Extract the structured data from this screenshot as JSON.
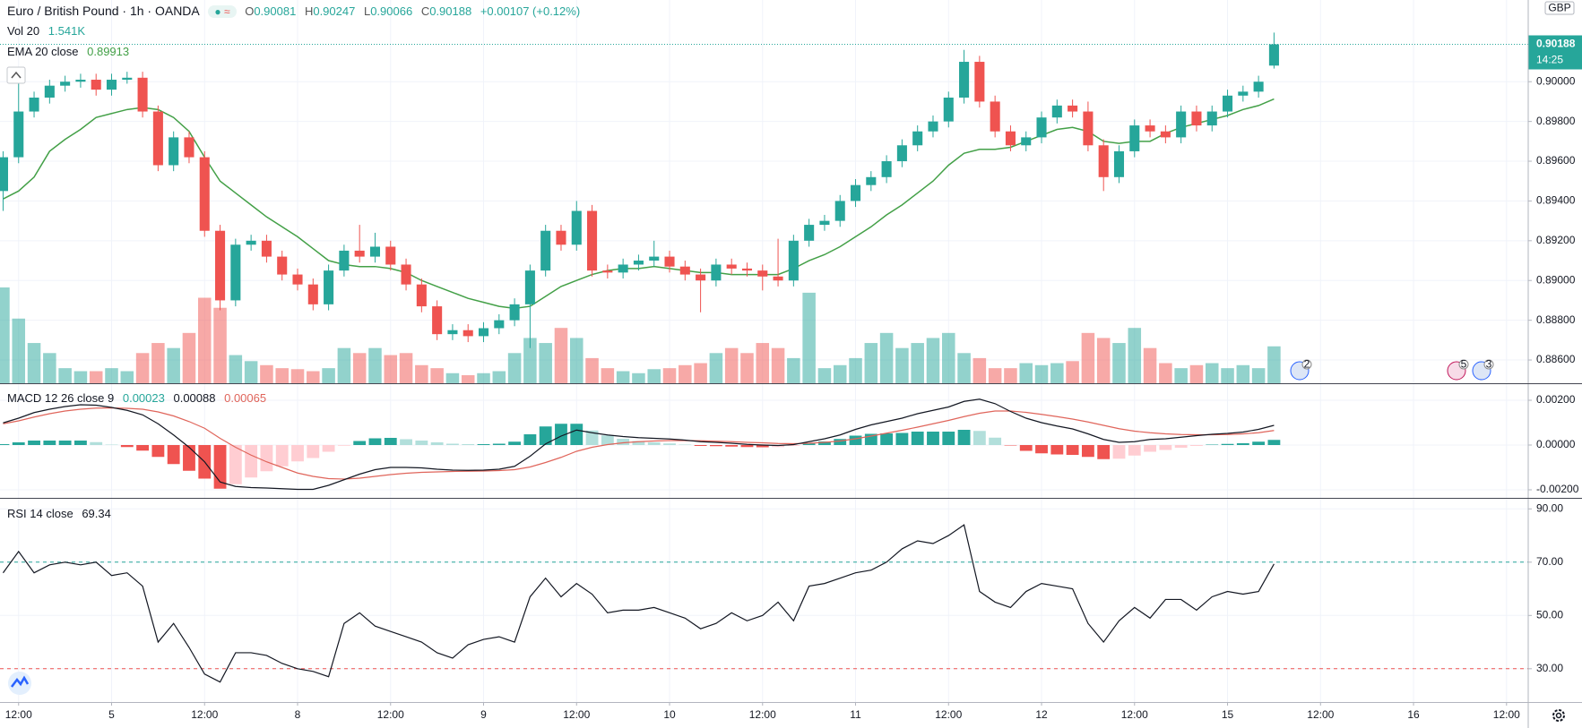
{
  "chart_data": [
    {
      "type": "candlestick",
      "title": "Euro / British Pound · 1h · OANDA",
      "ohlc_labels": [
        "O",
        "H",
        "L",
        "C"
      ],
      "change": "+0.00107 (+0.12%)",
      "up_color": "#26a69a",
      "down_color": "#ef5350",
      "open": [
        0.8945,
        0.8962,
        0.8985,
        0.8992,
        0.8998,
        0.9,
        0.9001,
        0.8996,
        0.9001,
        0.9002,
        0.8985,
        0.8958,
        0.8972,
        0.8962,
        0.8925,
        0.889,
        0.8918,
        0.892,
        0.8912,
        0.8903,
        0.8898,
        0.8888,
        0.8905,
        0.8915,
        0.8912,
        0.8917,
        0.8908,
        0.8898,
        0.8887,
        0.8873,
        0.8875,
        0.8872,
        0.8876,
        0.888,
        0.8888,
        0.8905,
        0.8925,
        0.8918,
        0.8935,
        0.8905,
        0.8904,
        0.8908,
        0.891,
        0.8912,
        0.8907,
        0.8903,
        0.89,
        0.8908,
        0.8906,
        0.8905,
        0.8902,
        0.89,
        0.892,
        0.8928,
        0.893,
        0.894,
        0.8948,
        0.8952,
        0.896,
        0.8968,
        0.8975,
        0.898,
        0.8992,
        0.901,
        0.899,
        0.8975,
        0.8968,
        0.8972,
        0.8982,
        0.8988,
        0.8985,
        0.8968,
        0.8952,
        0.8965,
        0.8978,
        0.8975,
        0.8972,
        0.8985,
        0.8978,
        0.8985,
        0.8993,
        0.8995,
        0.90081
      ],
      "high": [
        0.8965,
        0.9007,
        0.8995,
        0.9001,
        0.9003,
        0.9004,
        0.9004,
        0.9004,
        0.9005,
        0.9005,
        0.8988,
        0.8975,
        0.8975,
        0.8965,
        0.8928,
        0.8921,
        0.8923,
        0.8923,
        0.8915,
        0.8906,
        0.8901,
        0.8908,
        0.8918,
        0.8928,
        0.8924,
        0.892,
        0.8911,
        0.8901,
        0.889,
        0.8878,
        0.8878,
        0.8879,
        0.8883,
        0.8891,
        0.8908,
        0.8928,
        0.8928,
        0.894,
        0.8938,
        0.8908,
        0.8911,
        0.8913,
        0.892,
        0.8915,
        0.891,
        0.8906,
        0.8911,
        0.8911,
        0.8909,
        0.8908,
        0.8921,
        0.8923,
        0.8931,
        0.8933,
        0.8943,
        0.8951,
        0.8955,
        0.8963,
        0.8971,
        0.8978,
        0.8983,
        0.8995,
        0.9016,
        0.9013,
        0.8993,
        0.8978,
        0.8975,
        0.8985,
        0.8991,
        0.8991,
        0.899,
        0.8971,
        0.8968,
        0.8981,
        0.8981,
        0.8978,
        0.8988,
        0.8988,
        0.8988,
        0.8996,
        0.8998,
        0.9003,
        0.90247
      ],
      "low": [
        0.8935,
        0.8959,
        0.8982,
        0.8989,
        0.8995,
        0.8997,
        0.8993,
        0.8993,
        0.8999,
        0.8982,
        0.8955,
        0.8955,
        0.8959,
        0.8922,
        0.8885,
        0.8887,
        0.8915,
        0.8909,
        0.89,
        0.8895,
        0.8885,
        0.8885,
        0.8902,
        0.8909,
        0.8909,
        0.8905,
        0.8895,
        0.8884,
        0.887,
        0.887,
        0.8869,
        0.8869,
        0.8873,
        0.8877,
        0.8866,
        0.8902,
        0.8915,
        0.8915,
        0.8902,
        0.8901,
        0.8901,
        0.8905,
        0.8907,
        0.8904,
        0.89,
        0.8884,
        0.8897,
        0.8903,
        0.8902,
        0.8895,
        0.8897,
        0.8897,
        0.8917,
        0.8925,
        0.8927,
        0.8937,
        0.8945,
        0.8949,
        0.8957,
        0.8965,
        0.8972,
        0.8977,
        0.8989,
        0.8987,
        0.8972,
        0.8965,
        0.8965,
        0.8969,
        0.8979,
        0.8982,
        0.8965,
        0.8945,
        0.8949,
        0.8962,
        0.8972,
        0.8969,
        0.8969,
        0.8975,
        0.8975,
        0.8982,
        0.899,
        0.8992,
        0.90066
      ],
      "close": [
        0.8962,
        0.8985,
        0.8992,
        0.8998,
        0.9,
        0.9001,
        0.8996,
        0.9001,
        0.9002,
        0.8985,
        0.8958,
        0.8972,
        0.8962,
        0.8925,
        0.889,
        0.8918,
        0.892,
        0.8912,
        0.8903,
        0.8898,
        0.8888,
        0.8905,
        0.8915,
        0.8912,
        0.8917,
        0.8908,
        0.8898,
        0.8887,
        0.8873,
        0.8875,
        0.8872,
        0.8876,
        0.888,
        0.8888,
        0.8905,
        0.8925,
        0.8918,
        0.8935,
        0.8905,
        0.8904,
        0.8908,
        0.891,
        0.8912,
        0.8907,
        0.8903,
        0.89,
        0.8908,
        0.8906,
        0.8905,
        0.8902,
        0.89,
        0.892,
        0.8928,
        0.893,
        0.894,
        0.8948,
        0.8952,
        0.896,
        0.8968,
        0.8975,
        0.898,
        0.8992,
        0.901,
        0.899,
        0.8975,
        0.8968,
        0.8972,
        0.8982,
        0.8988,
        0.8985,
        0.8968,
        0.8952,
        0.8965,
        0.8978,
        0.8975,
        0.8972,
        0.8985,
        0.8978,
        0.8985,
        0.8993,
        0.8995,
        0.9,
        0.90188
      ],
      "volume": {
        "name": "Vol 20",
        "value_label": "1.541K",
        "values": [
          4000,
          2700,
          1680,
          1260,
          630,
          504,
          504,
          630,
          504,
          1260,
          1680,
          1470,
          2100,
          3570,
          3150,
          1176,
          924,
          756,
          630,
          588,
          504,
          630,
          1470,
          1260,
          1470,
          1176,
          1260,
          756,
          630,
          420,
          336,
          420,
          504,
          1260,
          1890,
          1680,
          2310,
          1890,
          1050,
          630,
          504,
          420,
          588,
          630,
          756,
          840,
          1260,
          1470,
          1260,
          1680,
          1470,
          1050,
          3780,
          630,
          756,
          1050,
          1680,
          2100,
          1470,
          1680,
          1890,
          2100,
          1260,
          1050,
          630,
          630,
          840,
          756,
          840,
          924,
          2100,
          1890,
          1680,
          2310,
          1470,
          840,
          630,
          756,
          840,
          630,
          756,
          630,
          1541
        ]
      },
      "ema": {
        "name": "EMA 20 close",
        "color": "#43a047",
        "values": [
          0.8941,
          0.8945,
          0.8952,
          0.8965,
          0.8971,
          0.8976,
          0.8982,
          0.8984,
          0.8986,
          0.8987,
          0.8986,
          0.8982,
          0.8975,
          0.8962,
          0.895,
          0.8944,
          0.8938,
          0.8932,
          0.8927,
          0.8922,
          0.8916,
          0.891,
          0.8908,
          0.8907,
          0.8907,
          0.8906,
          0.8904,
          0.89,
          0.8897,
          0.8894,
          0.8891,
          0.8889,
          0.8887,
          0.8886,
          0.8887,
          0.8892,
          0.8897,
          0.89,
          0.8903,
          0.8905,
          0.8906,
          0.8906,
          0.8907,
          0.8906,
          0.8905,
          0.8904,
          0.8904,
          0.8903,
          0.8903,
          0.8903,
          0.8903,
          0.8906,
          0.891,
          0.8913,
          0.8917,
          0.8922,
          0.8927,
          0.8933,
          0.8938,
          0.8944,
          0.895,
          0.8958,
          0.8964,
          0.8966,
          0.8966,
          0.8967,
          0.897,
          0.8973,
          0.8976,
          0.8977,
          0.8975,
          0.897,
          0.8969,
          0.897,
          0.897,
          0.8974,
          0.8977,
          0.8979,
          0.8981,
          0.8983,
          0.8986,
          0.8988,
          0.89913
        ]
      },
      "ylim": [
        0.88483,
        0.90411
      ],
      "yticks": [
        {
          "value": 0.886,
          "label": "0.88600"
        },
        {
          "value": 0.888,
          "label": "0.88800"
        },
        {
          "value": 0.89,
          "label": "0.89000"
        },
        {
          "value": 0.892,
          "label": "0.89200"
        },
        {
          "value": 0.894,
          "label": "0.89400"
        },
        {
          "value": 0.896,
          "label": "0.89600"
        },
        {
          "value": 0.898,
          "label": "0.89800"
        },
        {
          "value": 0.9,
          "label": "0.90000"
        }
      ],
      "currency": "GBP",
      "countdown": "14:25",
      "event_markers": [
        2,
        5,
        3
      ],
      "grid": true
    },
    {
      "type": "macd",
      "name": "MACD 12 26 close 9",
      "histogram": [
        4e-05,
        0.00012,
        0.0002,
        0.0002,
        0.0002,
        0.0002,
        0.00013,
        2e-05,
        -9e-05,
        -0.00025,
        -0.00053,
        -0.00085,
        -0.00115,
        -0.0015,
        -0.00195,
        -0.00175,
        -0.00145,
        -0.00117,
        -0.00095,
        -0.00073,
        -0.00058,
        -0.0003,
        -3e-05,
        0.00018,
        0.0003,
        0.00032,
        0.00026,
        0.0002,
        0.00012,
        6e-05,
        4e-05,
        4e-05,
        6e-05,
        0.00015,
        0.00048,
        0.00083,
        0.00095,
        0.00095,
        0.00065,
        0.00043,
        0.00028,
        0.00018,
        0.00012,
        7e-05,
        2e-05,
        -4e-05,
        -5e-05,
        -7e-05,
        -9e-05,
        -0.0001,
        -9e-05,
        -4e-05,
        7e-05,
        0.00016,
        0.00027,
        0.00042,
        0.0005,
        0.00052,
        0.00054,
        0.0006,
        0.0006,
        0.0006,
        0.00068,
        0.00063,
        0.00033,
        -2e-05,
        -0.00026,
        -0.00037,
        -0.00042,
        -0.00044,
        -0.00053,
        -0.00063,
        -0.00061,
        -0.00047,
        -0.0003,
        -0.00022,
        -0.00012,
        -4e-05,
        2e-05,
        5e-05,
        8e-05,
        0.00015,
        0.00023
      ],
      "histogram_colors": [
        "#26a69a",
        "#b2dfdb",
        "#ef5350",
        "#ffcdd2"
      ],
      "macd": {
        "color": "#131722",
        "values": [
          0.00099,
          0.0012,
          0.00145,
          0.0016,
          0.00172,
          0.0018,
          0.00178,
          0.00168,
          0.00155,
          0.00135,
          0.00095,
          0.00045,
          -0.0001,
          -0.00075,
          -0.00165,
          -0.00185,
          -0.0019,
          -0.00192,
          -0.00195,
          -0.00198,
          -0.00198,
          -0.0018,
          -0.00155,
          -0.0013,
          -0.0011,
          -0.001,
          -0.001,
          -0.00102,
          -0.00108,
          -0.00112,
          -0.00113,
          -0.00112,
          -0.00108,
          -0.00095,
          -0.0005,
          5e-05,
          0.0004,
          0.00067,
          0.00055,
          0.00045,
          0.00038,
          0.00033,
          0.0003,
          0.00027,
          0.00022,
          0.00015,
          0.00012,
          8e-05,
          3e-05,
          0,
          -2e-05,
          2e-05,
          0.00015,
          0.00028,
          0.00045,
          0.0007,
          0.0009,
          0.00105,
          0.0012,
          0.0014,
          0.00155,
          0.0017,
          0.00195,
          0.00205,
          0.00185,
          0.0015,
          0.0012,
          0.001,
          0.00085,
          0.00072,
          0.0005,
          0.00025,
          0.00012,
          0.00015,
          0.00025,
          0.00028,
          0.00035,
          0.00042,
          0.00048,
          0.00052,
          0.00058,
          0.0007,
          0.00088
        ]
      },
      "signal": {
        "color": "#e0655b",
        "values": [
          0.00095,
          0.00108,
          0.00125,
          0.0014,
          0.00152,
          0.0016,
          0.00165,
          0.00166,
          0.00164,
          0.0016,
          0.00148,
          0.0013,
          0.00105,
          0.00075,
          0.0003,
          -0.0001,
          -0.00045,
          -0.00075,
          -0.001,
          -0.00125,
          -0.0014,
          -0.0015,
          -0.00152,
          -0.00148,
          -0.0014,
          -0.00132,
          -0.00126,
          -0.00122,
          -0.0012,
          -0.00118,
          -0.00117,
          -0.00116,
          -0.00114,
          -0.0011,
          -0.00098,
          -0.00078,
          -0.00055,
          -0.00028,
          -0.0001,
          2e-05,
          0.0001,
          0.00015,
          0.00018,
          0.0002,
          0.0002,
          0.00019,
          0.00017,
          0.00015,
          0.00012,
          0.0001,
          7e-05,
          6e-05,
          8e-05,
          0.00012,
          0.00018,
          0.00028,
          0.0004,
          0.00053,
          0.00066,
          0.0008,
          0.00095,
          0.0011,
          0.00127,
          0.00142,
          0.00152,
          0.00152,
          0.00146,
          0.00137,
          0.00127,
          0.00116,
          0.00103,
          0.00088,
          0.00073,
          0.00062,
          0.00055,
          0.0005,
          0.00047,
          0.00046,
          0.00046,
          0.00047,
          0.0005,
          0.00055,
          0.00065
        ]
      },
      "ylim": [
        -0.00236,
        0.00272
      ],
      "yticks": [
        {
          "value": -0.002,
          "label": "-0.00200"
        },
        {
          "value": 0,
          "label": "0.00000"
        },
        {
          "value": 0.002,
          "label": "0.00200"
        }
      ],
      "grid": true
    },
    {
      "type": "line",
      "name": "RSI 14 close",
      "color": "#131722",
      "values": [
        66,
        74,
        66,
        69,
        70,
        69,
        70,
        65,
        66,
        61,
        40,
        47,
        38,
        28,
        25,
        36,
        36,
        35,
        32,
        30,
        29,
        27,
        47,
        51,
        46,
        44,
        42,
        40,
        36,
        34,
        39,
        41,
        42,
        40,
        57,
        64,
        57,
        62,
        58,
        51,
        52,
        52,
        53,
        51,
        49,
        45,
        47,
        51,
        48,
        50,
        55,
        48,
        61,
        62,
        64,
        66,
        67,
        70,
        75,
        78,
        77,
        80,
        84,
        59,
        55,
        53,
        59,
        62,
        61,
        60,
        47,
        40,
        48,
        53,
        49,
        56,
        56,
        52,
        57,
        59,
        58,
        59,
        69.34
      ],
      "bands": [
        70,
        30
      ],
      "band_colors": [
        "#26a69a",
        "#ef5350"
      ],
      "ylim": [
        17.5,
        93.8
      ],
      "yticks": [
        {
          "value": 30,
          "label": "30.00"
        },
        {
          "value": 50,
          "label": "50.00"
        },
        {
          "value": 70,
          "label": "70.00"
        },
        {
          "value": 90,
          "label": "90.00"
        }
      ],
      "xlim": [
        -0.2,
        98.4
      ],
      "xticks": [
        {
          "value": 1,
          "label": "12:00"
        },
        {
          "value": 7,
          "label": "5"
        },
        {
          "value": 13,
          "label": "12:00"
        },
        {
          "value": 19,
          "label": "8"
        },
        {
          "value": 25,
          "label": "12:00"
        },
        {
          "value": 31,
          "label": "9"
        },
        {
          "value": 37,
          "label": "12:00"
        },
        {
          "value": 43,
          "label": "10"
        },
        {
          "value": 49,
          "label": "12:00"
        },
        {
          "value": 55,
          "label": "11"
        },
        {
          "value": 61,
          "label": "12:00"
        },
        {
          "value": 67,
          "label": "12"
        },
        {
          "value": 73,
          "label": "12:00"
        },
        {
          "value": 79,
          "label": "15"
        },
        {
          "value": 85,
          "label": "12:00"
        },
        {
          "value": 91,
          "label": "16"
        },
        {
          "value": 97,
          "label": "12:00"
        }
      ],
      "grid": true
    }
  ]
}
